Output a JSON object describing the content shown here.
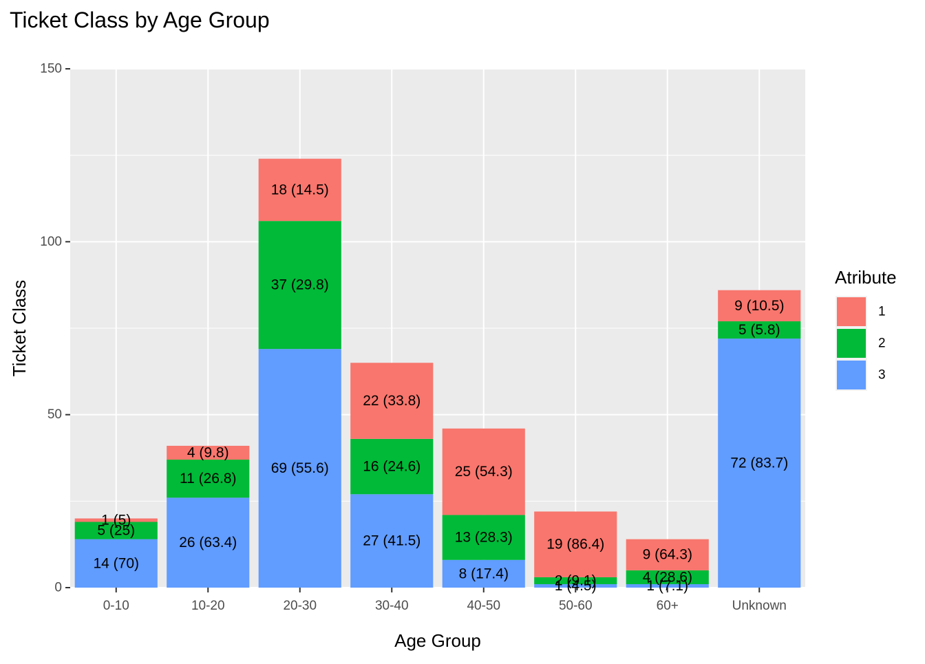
{
  "chart_data": {
    "type": "bar",
    "stacked": true,
    "title": "Ticket Class by Age Group",
    "xlabel": "Age Group",
    "ylabel": "Ticket Class",
    "ylim": [
      0,
      150
    ],
    "yticks": [
      0,
      50,
      100,
      150
    ],
    "grid": true,
    "legend_position": "right",
    "legend_title": "Atribute",
    "categories": [
      "0-10",
      "10-20",
      "20-30",
      "30-40",
      "40-50",
      "50-60",
      "60+",
      "Unknown"
    ],
    "series": [
      {
        "name": "3",
        "color": "#619CFF",
        "values": [
          14,
          26,
          69,
          27,
          8,
          1,
          1,
          72
        ],
        "labels": [
          "14 (70)",
          "26 (63.4)",
          "69 (55.6)",
          "27 (41.5)",
          "8 (17.4)",
          "1 (4.5)",
          "1 (7.1)",
          "72 (83.7)"
        ]
      },
      {
        "name": "2",
        "color": "#00BA38",
        "values": [
          5,
          11,
          37,
          16,
          13,
          2,
          4,
          5
        ],
        "labels": [
          "5 (25)",
          "11 (26.8)",
          "37 (29.8)",
          "16 (24.6)",
          "13 (28.3)",
          "2 (9.1)",
          "4 (28.6)",
          "5 (5.8)"
        ]
      },
      {
        "name": "1",
        "color": "#F8766D",
        "values": [
          1,
          4,
          18,
          22,
          25,
          19,
          9,
          9
        ],
        "labels": [
          "1 (5)",
          "4 (9.8)",
          "18 (14.5)",
          "22 (33.8)",
          "25 (54.3)",
          "19 (86.4)",
          "9 (64.3)",
          "9 (10.5)"
        ]
      }
    ],
    "legend_order": [
      "1",
      "2",
      "3"
    ]
  }
}
